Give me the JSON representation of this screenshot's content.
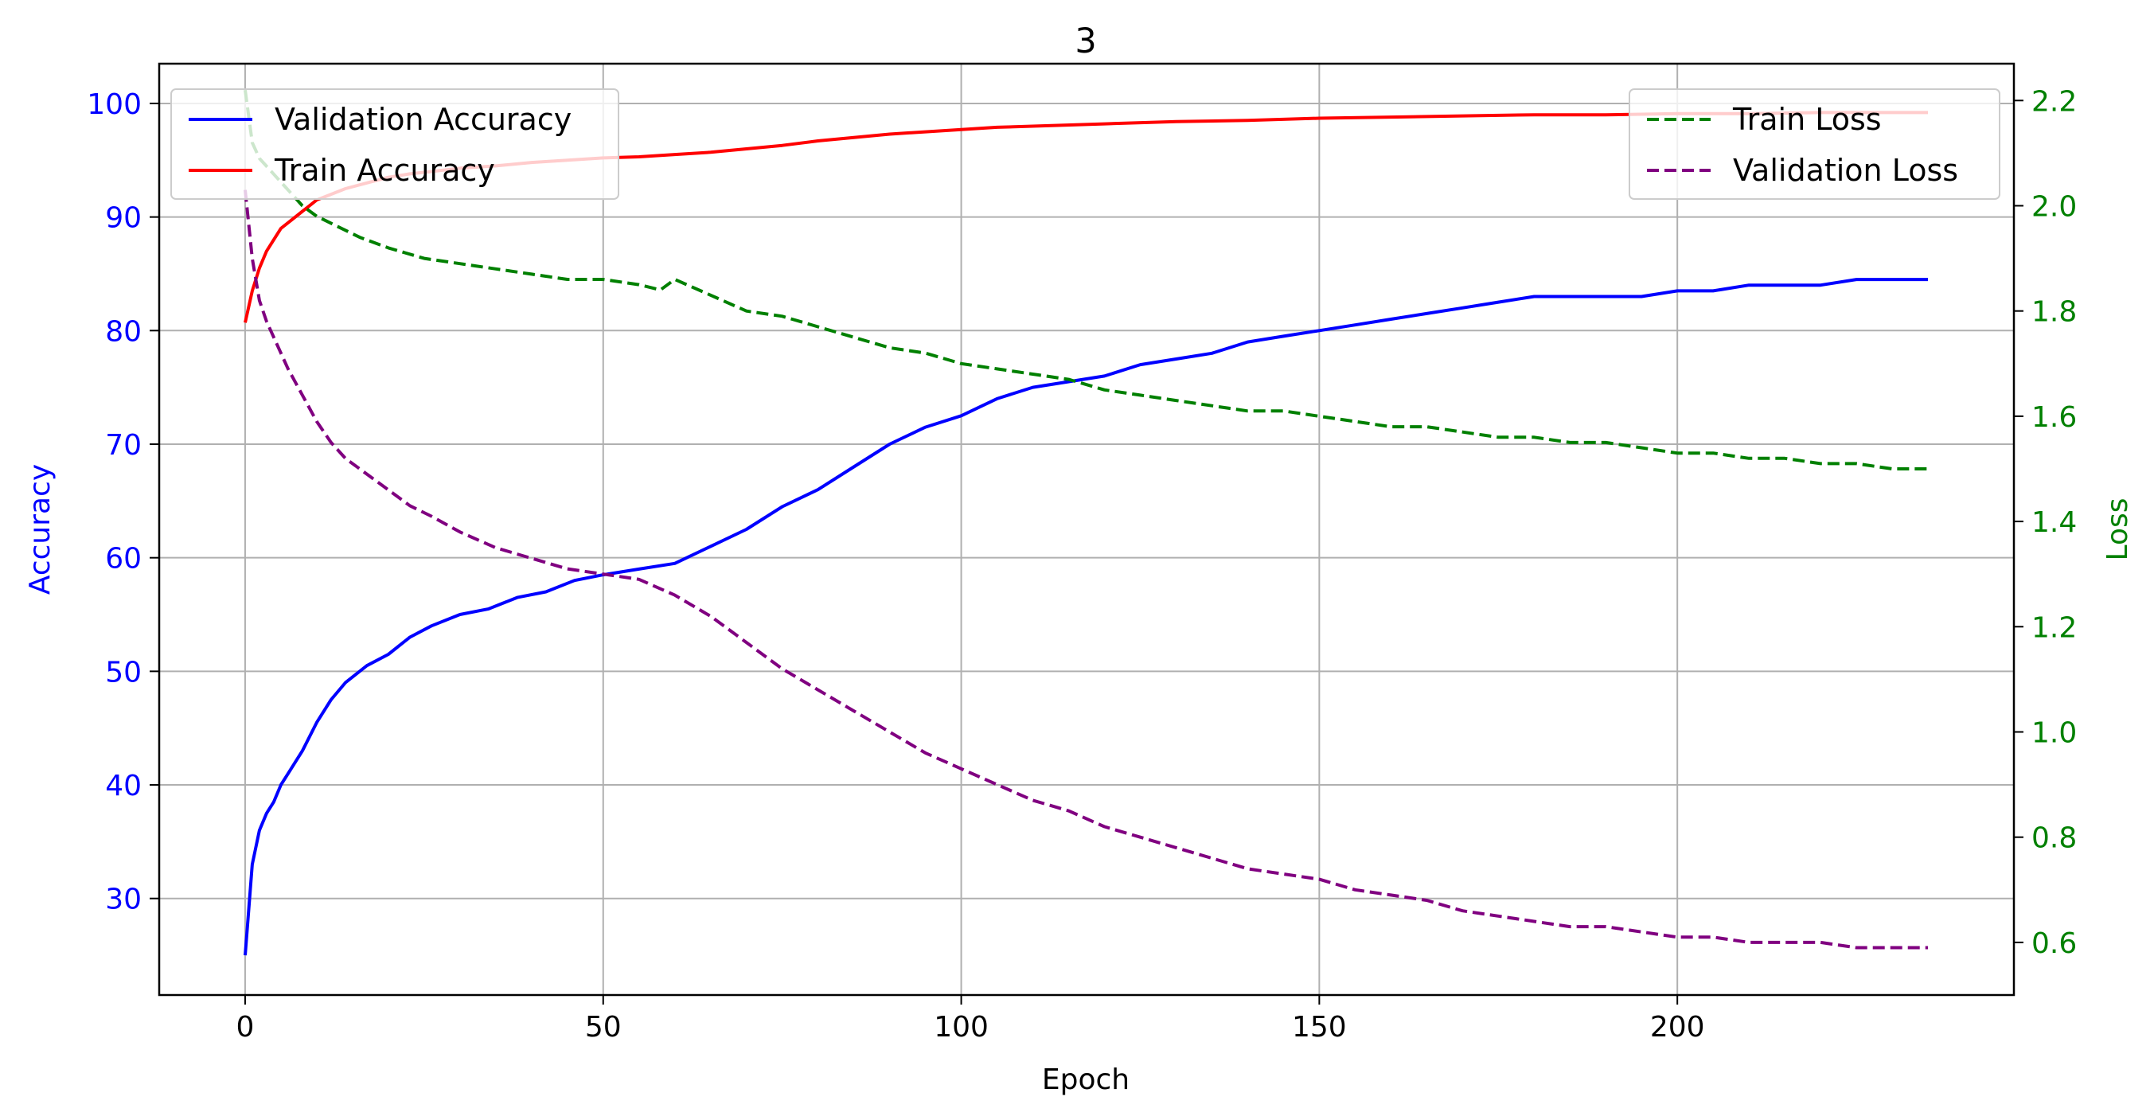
{
  "chart_data": {
    "type": "line",
    "title": "3",
    "xlabel": "Epoch",
    "ylabel_left": "Accuracy",
    "ylabel_right": "Loss",
    "xlim": [
      -12,
      247
    ],
    "ylim_left": [
      21.5,
      103.5
    ],
    "ylim_right": [
      0.5,
      2.27
    ],
    "x_ticks": [
      0,
      50,
      100,
      150,
      200
    ],
    "y_left_ticks": [
      30,
      40,
      50,
      60,
      70,
      80,
      90,
      100
    ],
    "y_right_ticks": [
      0.6,
      0.8,
      1.0,
      1.2,
      1.4,
      1.6,
      1.8,
      2.0,
      2.2
    ],
    "y_right_tick_labels": [
      "0.6",
      "0.8",
      "1.0",
      "1.2",
      "1.4",
      "1.6",
      "1.8",
      "2.0",
      "2.2"
    ],
    "grid": true,
    "colors": {
      "left_axis": "#0000ff",
      "right_axis": "#008000"
    },
    "legends": [
      {
        "placement": "upper-left",
        "entries": [
          "Validation Accuracy",
          "Train Accuracy"
        ]
      },
      {
        "placement": "upper-right",
        "entries": [
          "Train Loss",
          "Validation Loss"
        ]
      }
    ],
    "series": [
      {
        "name": "Validation Accuracy",
        "axis": "left",
        "color": "#0000ff",
        "dash": "solid",
        "x": [
          0,
          1,
          2,
          3,
          4,
          5,
          6,
          8,
          10,
          12,
          14,
          17,
          20,
          23,
          26,
          30,
          34,
          38,
          42,
          46,
          50,
          55,
          60,
          65,
          70,
          75,
          80,
          85,
          90,
          95,
          100,
          105,
          110,
          115,
          120,
          125,
          130,
          135,
          140,
          145,
          150,
          155,
          160,
          165,
          170,
          175,
          180,
          185,
          190,
          195,
          200,
          205,
          210,
          215,
          220,
          225,
          230,
          235
        ],
        "y": [
          25.0,
          33.0,
          36.0,
          37.5,
          38.5,
          40.0,
          41.0,
          43.0,
          45.5,
          47.5,
          49.0,
          50.5,
          51.5,
          53.0,
          54.0,
          55.0,
          55.5,
          56.5,
          57.0,
          58.0,
          58.5,
          59.0,
          59.5,
          61.0,
          62.5,
          64.5,
          66.0,
          68.0,
          70.0,
          71.5,
          72.5,
          74.0,
          75.0,
          75.5,
          76.0,
          77.0,
          77.5,
          78.0,
          79.0,
          79.5,
          80.0,
          80.5,
          81.0,
          81.5,
          82.0,
          82.5,
          83.0,
          83.0,
          83.0,
          83.0,
          83.5,
          83.5,
          84.0,
          84.0,
          84.0,
          84.5,
          84.5,
          84.5
        ]
      },
      {
        "name": "Train Accuracy",
        "axis": "left",
        "color": "#ff0000",
        "dash": "solid",
        "x": [
          0,
          1,
          2,
          3,
          4,
          5,
          6,
          8,
          10,
          12,
          14,
          17,
          20,
          23,
          26,
          30,
          35,
          40,
          45,
          50,
          55,
          60,
          65,
          70,
          75,
          80,
          85,
          90,
          95,
          100,
          105,
          110,
          120,
          130,
          140,
          150,
          160,
          170,
          180,
          190,
          200,
          210,
          220,
          235
        ],
        "y": [
          80.7,
          83.5,
          85.5,
          87.0,
          88.0,
          89.0,
          89.5,
          90.5,
          91.5,
          92.0,
          92.5,
          93.0,
          93.5,
          93.8,
          94.0,
          94.3,
          94.5,
          94.8,
          95.0,
          95.2,
          95.3,
          95.5,
          95.7,
          96.0,
          96.3,
          96.7,
          97.0,
          97.3,
          97.5,
          97.7,
          97.9,
          98.0,
          98.2,
          98.4,
          98.5,
          98.7,
          98.8,
          98.9,
          99.0,
          99.0,
          99.1,
          99.1,
          99.2,
          99.2
        ]
      },
      {
        "name": "Train Loss",
        "axis": "right",
        "color": "#008000",
        "dash": "dashed",
        "x": [
          0,
          1,
          2,
          4,
          6,
          8,
          10,
          13,
          16,
          20,
          25,
          30,
          35,
          40,
          45,
          50,
          55,
          58,
          60,
          65,
          70,
          75,
          80,
          85,
          90,
          95,
          100,
          105,
          110,
          115,
          120,
          125,
          130,
          135,
          140,
          145,
          150,
          155,
          160,
          165,
          170,
          175,
          180,
          185,
          190,
          195,
          200,
          205,
          210,
          215,
          220,
          225,
          230,
          235
        ],
        "y": [
          2.22,
          2.12,
          2.09,
          2.06,
          2.03,
          2.0,
          1.98,
          1.96,
          1.94,
          1.92,
          1.9,
          1.89,
          1.88,
          1.87,
          1.86,
          1.86,
          1.85,
          1.84,
          1.86,
          1.83,
          1.8,
          1.79,
          1.77,
          1.75,
          1.73,
          1.72,
          1.7,
          1.69,
          1.68,
          1.67,
          1.65,
          1.64,
          1.63,
          1.62,
          1.61,
          1.61,
          1.6,
          1.59,
          1.58,
          1.58,
          1.57,
          1.56,
          1.56,
          1.55,
          1.55,
          1.54,
          1.53,
          1.53,
          1.52,
          1.52,
          1.51,
          1.51,
          1.5,
          1.5
        ]
      },
      {
        "name": "Validation Loss",
        "axis": "right",
        "color": "#800080",
        "dash": "dashed",
        "x": [
          0,
          1,
          2,
          3,
          4,
          5,
          6,
          8,
          10,
          12,
          14,
          17,
          20,
          23,
          26,
          30,
          35,
          40,
          45,
          50,
          55,
          60,
          65,
          70,
          75,
          80,
          85,
          90,
          95,
          100,
          105,
          110,
          115,
          120,
          125,
          130,
          135,
          140,
          145,
          150,
          155,
          160,
          165,
          170,
          175,
          180,
          185,
          190,
          195,
          200,
          205,
          210,
          215,
          220,
          225,
          230,
          235
        ],
        "y": [
          2.03,
          1.9,
          1.82,
          1.78,
          1.75,
          1.72,
          1.69,
          1.64,
          1.59,
          1.55,
          1.52,
          1.49,
          1.46,
          1.43,
          1.41,
          1.38,
          1.35,
          1.33,
          1.31,
          1.3,
          1.29,
          1.26,
          1.22,
          1.17,
          1.12,
          1.08,
          1.04,
          1.0,
          0.96,
          0.93,
          0.9,
          0.87,
          0.85,
          0.82,
          0.8,
          0.78,
          0.76,
          0.74,
          0.73,
          0.72,
          0.7,
          0.69,
          0.68,
          0.66,
          0.65,
          0.64,
          0.63,
          0.63,
          0.62,
          0.61,
          0.61,
          0.6,
          0.6,
          0.6,
          0.59,
          0.59,
          0.59
        ]
      }
    ]
  }
}
